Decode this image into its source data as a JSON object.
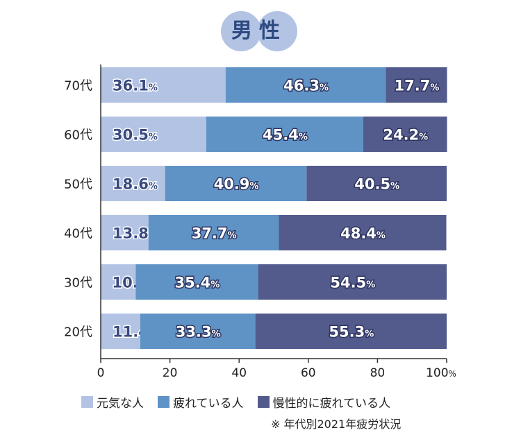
{
  "chart_data": {
    "type": "bar",
    "orientation": "horizontal",
    "stacked": true,
    "title": "男性",
    "categories": [
      "70代",
      "60代",
      "50代",
      "40代",
      "30代",
      "20代"
    ],
    "series": [
      {
        "name": "元気な人",
        "color": "#b3c3e4",
        "values": [
          36.1,
          30.5,
          18.6,
          13.8,
          10.1,
          11.4
        ]
      },
      {
        "name": "疲れている人",
        "color": "#5f93c6",
        "values": [
          46.3,
          45.4,
          40.9,
          37.7,
          35.4,
          33.3
        ]
      },
      {
        "name": "慢性的に疲れている人",
        "color": "#535a8c",
        "values": [
          17.7,
          24.2,
          40.5,
          48.4,
          54.5,
          55.3
        ]
      }
    ],
    "xlim": [
      0,
      100
    ],
    "xticks": [
      "0",
      "20",
      "40",
      "60",
      "80",
      "100"
    ],
    "value_unit": "%",
    "tick_unit": "%",
    "grid": false,
    "legend_position": "bottom",
    "note": "※ 年代別2021年疲労状況"
  }
}
